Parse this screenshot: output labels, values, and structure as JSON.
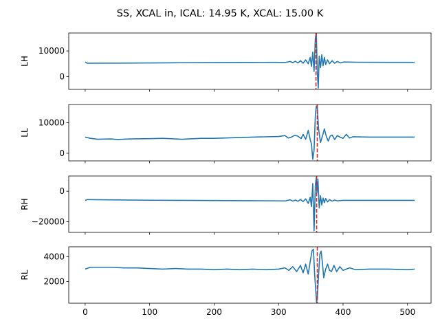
{
  "figure": {
    "suptitle": "SS, XCAL in, ICAL: 14.95 K, XCAL: 15.00 K",
    "x_ticks": [
      0,
      100,
      200,
      300,
      400,
      500
    ],
    "x_tick_labels": [
      "0",
      "100",
      "200",
      "300",
      "400",
      "500"
    ],
    "line_color": "#1f77b4",
    "marker_color": "#d62728"
  },
  "chart_data": [
    {
      "type": "line",
      "ylabel": "LH",
      "ylim": [
        -5000,
        17000
      ],
      "xlim": [
        -25.5,
        536.5
      ],
      "yticks": [
        0,
        10000
      ],
      "ytick_labels": [
        "0",
        "10000"
      ],
      "grid": false,
      "marker_x": 358,
      "keypoints": [
        [
          0,
          5700
        ],
        [
          3,
          5200
        ],
        [
          50,
          5250
        ],
        [
          100,
          5300
        ],
        [
          150,
          5400
        ],
        [
          200,
          5450
        ],
        [
          250,
          5500
        ],
        [
          290,
          5550
        ],
        [
          310,
          5500
        ],
        [
          318,
          5900
        ],
        [
          322,
          5400
        ],
        [
          326,
          6000
        ],
        [
          330,
          5300
        ],
        [
          334,
          6200
        ],
        [
          338,
          5200
        ],
        [
          342,
          6500
        ],
        [
          346,
          5000
        ],
        [
          349,
          7500
        ],
        [
          351,
          4000
        ],
        [
          353,
          9500
        ],
        [
          355,
          2000
        ],
        [
          357,
          15000
        ],
        [
          358.5,
          17000
        ],
        [
          360,
          2000
        ],
        [
          361.5,
          -4500
        ],
        [
          363,
          8000
        ],
        [
          365,
          3500
        ],
        [
          367,
          8500
        ],
        [
          369,
          4200
        ],
        [
          371,
          7500
        ],
        [
          373,
          4700
        ],
        [
          376,
          6500
        ],
        [
          379,
          5000
        ],
        [
          383,
          6200
        ],
        [
          387,
          5200
        ],
        [
          391,
          5900
        ],
        [
          396,
          5300
        ],
        [
          401,
          5700
        ],
        [
          420,
          5600
        ],
        [
          470,
          5550
        ],
        [
          511,
          5550
        ]
      ]
    },
    {
      "type": "line",
      "ylabel": "LL",
      "ylim": [
        -2500,
        16000
      ],
      "xlim": [
        -25.5,
        536.5
      ],
      "yticks": [
        0,
        10000
      ],
      "ytick_labels": [
        "0",
        "10000"
      ],
      "grid": false,
      "marker_x": 360,
      "keypoints": [
        [
          0,
          5300
        ],
        [
          8,
          4900
        ],
        [
          20,
          4600
        ],
        [
          40,
          4700
        ],
        [
          50,
          4500
        ],
        [
          70,
          4700
        ],
        [
          100,
          4800
        ],
        [
          120,
          4900
        ],
        [
          150,
          4600
        ],
        [
          180,
          4900
        ],
        [
          200,
          4900
        ],
        [
          230,
          5100
        ],
        [
          260,
          5300
        ],
        [
          300,
          5500
        ],
        [
          310,
          5800
        ],
        [
          315,
          5000
        ],
        [
          320,
          5300
        ],
        [
          325,
          5900
        ],
        [
          330,
          5600
        ],
        [
          335,
          4800
        ],
        [
          338,
          6200
        ],
        [
          342,
          4600
        ],
        [
          346,
          7500
        ],
        [
          349,
          4500
        ],
        [
          351,
          3000
        ],
        [
          353,
          -2000
        ],
        [
          355,
          1000
        ],
        [
          357,
          12500
        ],
        [
          358.5,
          15500
        ],
        [
          360,
          15000
        ],
        [
          362,
          8000
        ],
        [
          365,
          3500
        ],
        [
          368,
          5600
        ],
        [
          371,
          8000
        ],
        [
          374,
          5500
        ],
        [
          377,
          4000
        ],
        [
          380,
          5600
        ],
        [
          383,
          6000
        ],
        [
          387,
          4500
        ],
        [
          391,
          5800
        ],
        [
          395,
          5300
        ],
        [
          400,
          4900
        ],
        [
          405,
          6200
        ],
        [
          410,
          5000
        ],
        [
          415,
          5400
        ],
        [
          440,
          5300
        ],
        [
          480,
          5300
        ],
        [
          511,
          5300
        ]
      ]
    },
    {
      "type": "line",
      "ylabel": "RH",
      "ylim": [
        -27000,
        10000
      ],
      "xlim": [
        -25.5,
        536.5
      ],
      "yticks": [
        -20000,
        0
      ],
      "ytick_labels": [
        "−20000",
        "0"
      ],
      "grid": false,
      "marker_x": 359,
      "keypoints": [
        [
          0,
          -6000
        ],
        [
          3,
          -5500
        ],
        [
          50,
          -5700
        ],
        [
          100,
          -5900
        ],
        [
          150,
          -6000
        ],
        [
          200,
          -6100
        ],
        [
          250,
          -6200
        ],
        [
          300,
          -6300
        ],
        [
          310,
          -6400
        ],
        [
          318,
          -5600
        ],
        [
          322,
          -6500
        ],
        [
          326,
          -5800
        ],
        [
          330,
          -6600
        ],
        [
          334,
          -5400
        ],
        [
          338,
          -6800
        ],
        [
          342,
          -5000
        ],
        [
          346,
          -8000
        ],
        [
          349,
          -4000
        ],
        [
          351,
          -10000
        ],
        [
          353,
          5000
        ],
        [
          355,
          -26000
        ],
        [
          357,
          4000
        ],
        [
          358.5,
          9000
        ],
        [
          359.5,
          -1000
        ],
        [
          361,
          8000
        ],
        [
          363,
          -11000
        ],
        [
          365,
          -3000
        ],
        [
          367,
          -9000
        ],
        [
          369,
          -4500
        ],
        [
          371,
          -7500
        ],
        [
          373,
          -4800
        ],
        [
          376,
          -7000
        ],
        [
          379,
          -5500
        ],
        [
          383,
          -6500
        ],
        [
          387,
          -5800
        ],
        [
          391,
          -6300
        ],
        [
          400,
          -6000
        ],
        [
          450,
          -6000
        ],
        [
          511,
          -6000
        ]
      ]
    },
    {
      "type": "line",
      "ylabel": "RL",
      "ylim": [
        250,
        4800
      ],
      "xlim": [
        -25.5,
        536.5
      ],
      "yticks": [
        2000,
        4000
      ],
      "ytick_labels": [
        "2000",
        "4000"
      ],
      "grid": false,
      "marker_x": 360,
      "keypoints": [
        [
          0,
          3000
        ],
        [
          8,
          3150
        ],
        [
          20,
          3150
        ],
        [
          40,
          3150
        ],
        [
          60,
          3100
        ],
        [
          80,
          3100
        ],
        [
          100,
          3050
        ],
        [
          120,
          3000
        ],
        [
          140,
          3050
        ],
        [
          160,
          3000
        ],
        [
          180,
          3000
        ],
        [
          200,
          2950
        ],
        [
          220,
          3000
        ],
        [
          240,
          2950
        ],
        [
          260,
          3000
        ],
        [
          280,
          2950
        ],
        [
          300,
          3000
        ],
        [
          310,
          3100
        ],
        [
          316,
          2900
        ],
        [
          322,
          3200
        ],
        [
          328,
          2800
        ],
        [
          334,
          3300
        ],
        [
          338,
          2700
        ],
        [
          342,
          3400
        ],
        [
          346,
          2600
        ],
        [
          349,
          3600
        ],
        [
          352,
          4500
        ],
        [
          354,
          4600
        ],
        [
          356,
          2500
        ],
        [
          358,
          1000
        ],
        [
          359,
          300
        ],
        [
          360,
          700
        ],
        [
          362,
          2500
        ],
        [
          364,
          4200
        ],
        [
          366,
          4450
        ],
        [
          368,
          3500
        ],
        [
          370,
          2300
        ],
        [
          373,
          3000
        ],
        [
          376,
          3400
        ],
        [
          379,
          2900
        ],
        [
          382,
          2800
        ],
        [
          386,
          3300
        ],
        [
          390,
          2800
        ],
        [
          395,
          3200
        ],
        [
          400,
          2900
        ],
        [
          410,
          3100
        ],
        [
          420,
          2950
        ],
        [
          440,
          3000
        ],
        [
          470,
          3000
        ],
        [
          500,
          2950
        ],
        [
          511,
          3000
        ]
      ]
    }
  ]
}
